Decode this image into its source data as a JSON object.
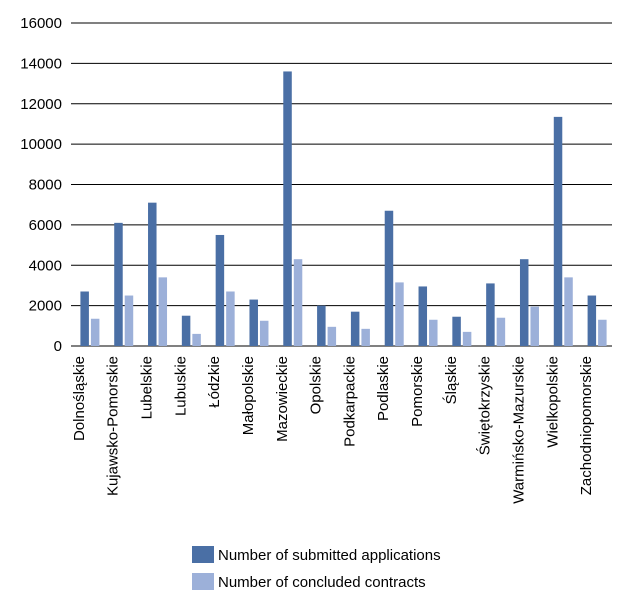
{
  "chart_data": {
    "type": "bar",
    "categories": [
      "Dolnośląskie",
      "Kujawsko-Pomorskie",
      "Lubelskie",
      "Lubuskie",
      "Łódzkie",
      "Małopolskie",
      "Mazowieckie",
      "Opolskie",
      "Podkarpackie",
      "Podlaskie",
      "Pomorskie",
      "Śląskie",
      "Świętokrzyskie",
      "Warmińsko-Mazurskie",
      "Wielkopolskie",
      "Zachodniopomorskie"
    ],
    "series": [
      {
        "name": "Number of submitted applications",
        "color": "#4a6fa5",
        "values": [
          2700,
          6100,
          7100,
          1500,
          5500,
          2300,
          13600,
          2000,
          1700,
          6700,
          2950,
          1450,
          3100,
          4300,
          11350,
          2500
        ]
      },
      {
        "name": "Number of concluded contracts",
        "color": "#9cb0d9",
        "values": [
          1350,
          2500,
          3400,
          600,
          2700,
          1250,
          4300,
          950,
          850,
          3150,
          1300,
          700,
          1400,
          1950,
          3400,
          1300
        ]
      }
    ],
    "y_ticks": [
      "0",
      "2000",
      "4000",
      "6000",
      "8000",
      "10000",
      "12000",
      "14000",
      "16000"
    ],
    "ylim": [
      0,
      16000
    ],
    "grid": true,
    "legend_position": "bottom"
  }
}
